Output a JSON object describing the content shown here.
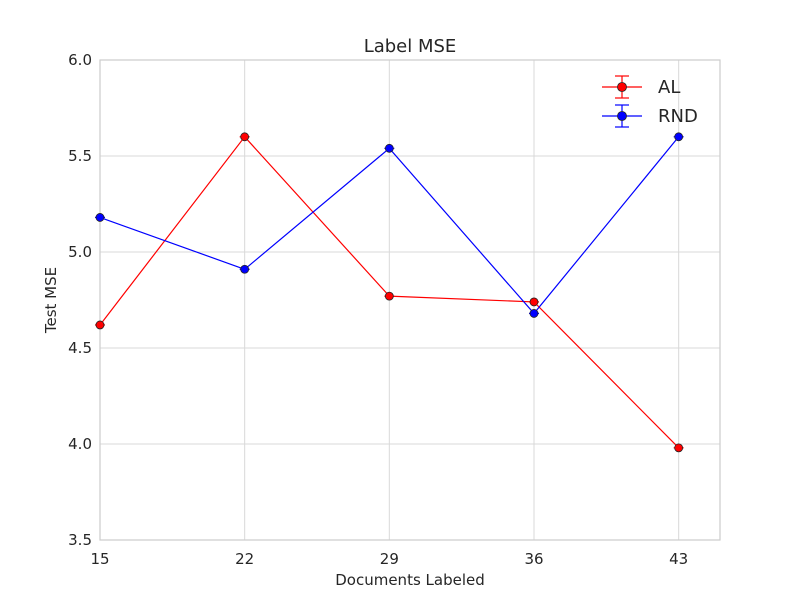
{
  "chart_data": {
    "type": "line",
    "title": "Label MSE",
    "xlabel": "Documents Labeled",
    "ylabel": "Test MSE",
    "x": [
      15,
      22,
      29,
      36,
      43
    ],
    "x_ticks": [
      "15",
      "22",
      "29",
      "36",
      "43"
    ],
    "xlim": [
      15,
      45
    ],
    "ylim": [
      3.5,
      6.0
    ],
    "y_ticks": [
      "3.5",
      "4.0",
      "4.5",
      "5.0",
      "5.5",
      "6.0"
    ],
    "grid": true,
    "legend_position": "top-right",
    "series": [
      {
        "name": "AL",
        "color": "#ff0000",
        "values": [
          4.62,
          5.6,
          4.77,
          4.74,
          3.98
        ]
      },
      {
        "name": "RND",
        "color": "#0000ff",
        "values": [
          5.18,
          4.91,
          5.54,
          4.68,
          5.6
        ]
      }
    ]
  }
}
